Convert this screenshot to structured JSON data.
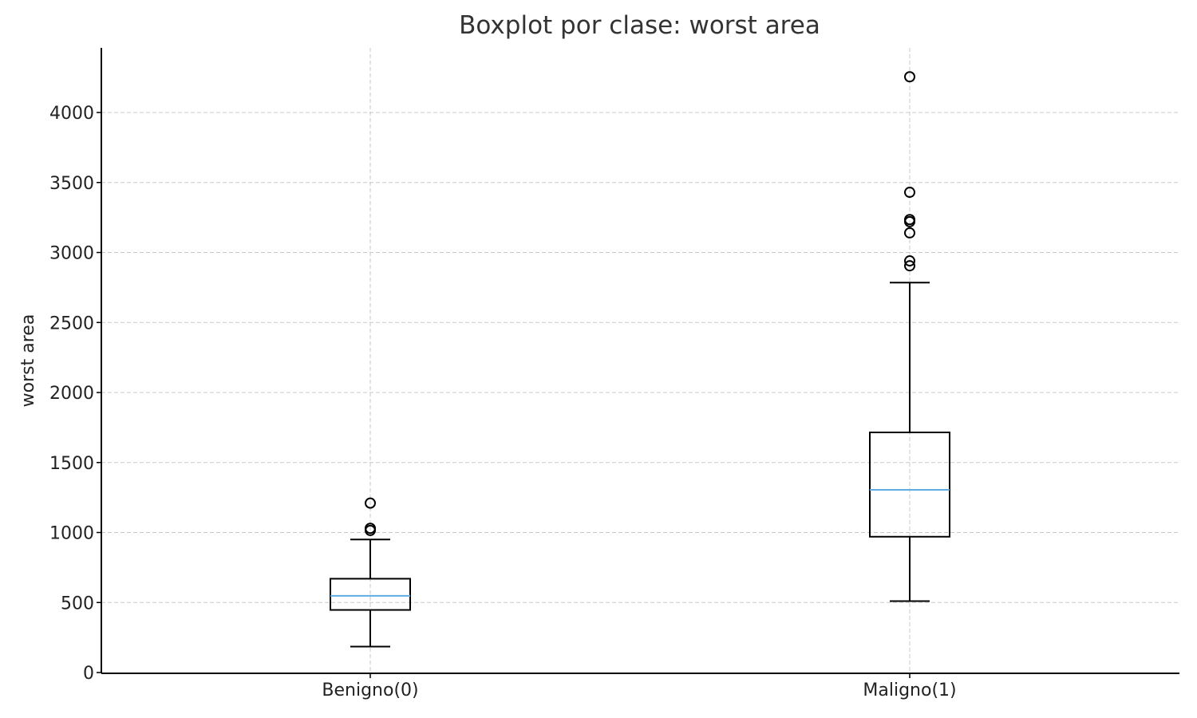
{
  "chart_data": {
    "type": "boxplot",
    "title": "Boxplot por clase: worst area",
    "xlabel": "",
    "ylabel": "worst area",
    "ylim": [
      0,
      4450
    ],
    "yticks": [
      0,
      500,
      1000,
      1500,
      2000,
      2500,
      3000,
      3500,
      4000
    ],
    "grid": true,
    "categories": [
      "Benigno(0)",
      "Maligno(1)"
    ],
    "boxes": [
      {
        "category": "Benigno(0)",
        "whisker_low": 185,
        "q1": 447,
        "median": 548,
        "q3": 670,
        "whisker_high": 950,
        "outliers": [
          1015,
          1030,
          1210
        ]
      },
      {
        "category": "Maligno(1)",
        "whisker_low": 510,
        "q1": 970,
        "median": 1305,
        "q3": 1715,
        "whisker_high": 2785,
        "outliers": [
          2905,
          2940,
          3140,
          3220,
          3235,
          3430,
          4255
        ]
      }
    ],
    "colors": {
      "box": "#000000",
      "median": "#5DADE2",
      "grid": "#c8c8c8"
    }
  }
}
